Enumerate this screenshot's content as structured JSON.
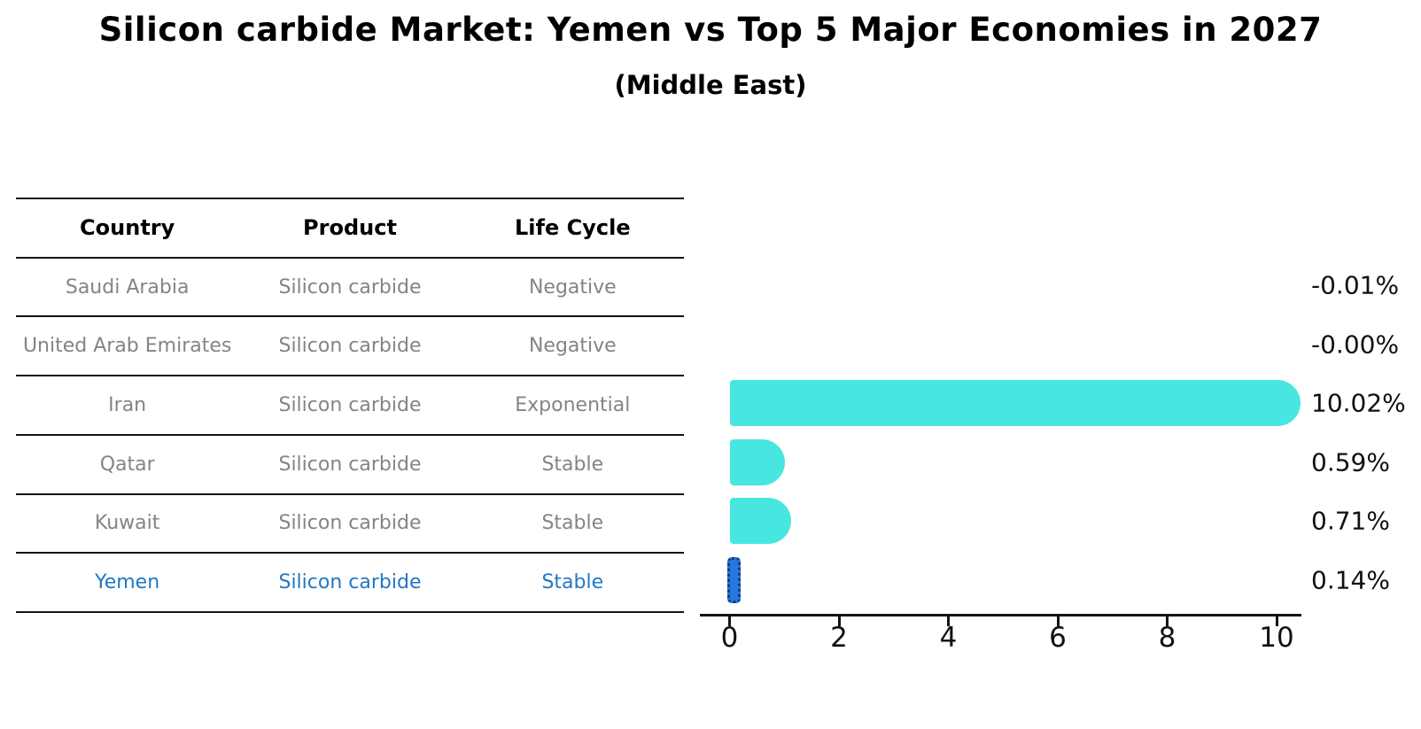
{
  "chart_data": {
    "type": "bar",
    "orientation": "horizontal",
    "title": "Silicon carbide Market: Yemen vs Top 5 Major Economies in 2027",
    "subtitle": "(Middle East)",
    "categories": [
      "Saudi Arabia",
      "United Arab Emirates",
      "Iran",
      "Qatar",
      "Kuwait",
      "Yemen"
    ],
    "values": [
      -0.01,
      -0.0,
      10.02,
      0.59,
      0.71,
      0.14
    ],
    "value_labels": [
      "-0.01%",
      "-0.00%",
      "10.02%",
      "0.59%",
      "0.71%",
      "0.14%"
    ],
    "xticks": [
      0,
      2,
      4,
      6,
      8,
      10
    ],
    "xlim": [
      -0.55,
      10.43
    ],
    "grid": false,
    "legend": false,
    "bar_color": "#47E6E0",
    "highlight_color": "#2678DC",
    "highlight_category": "Yemen"
  },
  "table": {
    "headers": [
      "Country",
      "Product",
      "Life Cycle"
    ],
    "rows": [
      {
        "country": "Saudi Arabia",
        "product": "Silicon carbide",
        "life_cycle": "Negative",
        "highlighted": false
      },
      {
        "country": "United Arab Emirates",
        "product": "Silicon carbide",
        "life_cycle": "Negative",
        "highlighted": false
      },
      {
        "country": "Iran",
        "product": "Silicon carbide",
        "life_cycle": "Exponential",
        "highlighted": false
      },
      {
        "country": "Qatar",
        "product": "Silicon carbide",
        "life_cycle": "Stable",
        "highlighted": false
      },
      {
        "country": "Kuwait",
        "product": "Silicon carbide",
        "life_cycle": "Stable",
        "highlighted": false
      },
      {
        "country": "Yemen",
        "product": "Silicon carbide",
        "life_cycle": "Stable",
        "highlighted": true
      }
    ]
  },
  "colors": {
    "bar": "#47E6E0",
    "highlight_bar": "#2678DC",
    "highlight_border": "#123A7D",
    "highlight_text": "#2277C4",
    "table_text": "#848484",
    "axis_line": "#141414"
  }
}
